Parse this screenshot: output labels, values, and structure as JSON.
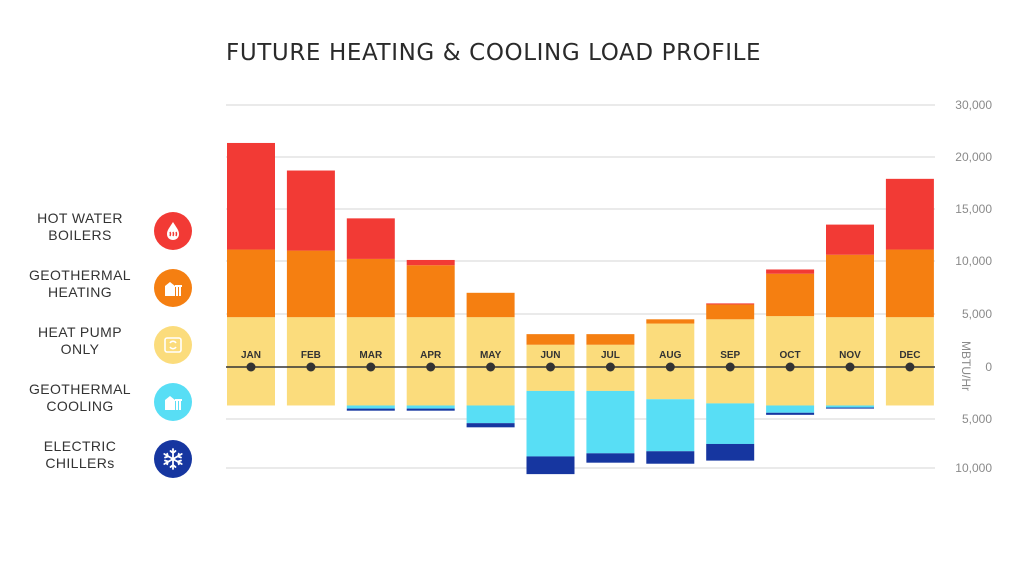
{
  "title": "FUTURE HEATING & COOLING LOAD PROFILE",
  "legend": [
    {
      "label_line1": "HOT WATER",
      "label_line2": "BOILERS",
      "color": "#f23a35",
      "icon": "flame-icon"
    },
    {
      "label_line1": "GEOTHERMAL",
      "label_line2": "HEATING",
      "color": "#f57f11",
      "icon": "geothermal-heating-icon"
    },
    {
      "label_line1": "HEAT PUMP",
      "label_line2": "ONLY",
      "color": "#fbdc7c",
      "icon": "heat-pump-icon"
    },
    {
      "label_line1": "GEOTHERMAL",
      "label_line2": "COOLING",
      "color": "#58def5",
      "icon": "geothermal-cooling-icon"
    },
    {
      "label_line1": "ELECTRIC",
      "label_line2": "CHILLERs",
      "color": "#1636a0",
      "icon": "snowflake-icon"
    }
  ],
  "chart_data": {
    "type": "bar",
    "stacked": true,
    "title": "FUTURE HEATING & COOLING LOAD PROFILE",
    "ylabel": "MBTU/Hr",
    "categories": [
      "JAN",
      "FEB",
      "MAR",
      "APR",
      "MAY",
      "JUN",
      "JUL",
      "AUG",
      "SEP",
      "OCT",
      "NOV",
      "DEC"
    ],
    "y_ticks_upper": [
      "30,000",
      "20,000",
      "15,000",
      "10,000",
      "5,000",
      "0"
    ],
    "y_ticks_lower": [
      "5,000",
      "10,000"
    ],
    "y_tick_values_upper": [
      30000,
      20000,
      15000,
      10000,
      5000,
      0
    ],
    "y_tick_values_lower": [
      -5000,
      -10000
    ],
    "heating_series": [
      {
        "name": "HEAT PUMP ONLY",
        "color": "#fbdc7c",
        "values": [
          4700,
          4700,
          4700,
          4700,
          4700,
          2100,
          2100,
          4100,
          4500,
          4800,
          4700,
          4700
        ]
      },
      {
        "name": "GEOTHERMAL HEATING",
        "color": "#f57f11",
        "values": [
          6400,
          6300,
          5500,
          4900,
          2300,
          1000,
          1000,
          400,
          1400,
          4000,
          5900,
          6400
        ]
      },
      {
        "name": "HOT WATER BOILERS",
        "color": "#f23a35",
        "values": [
          11600,
          7700,
          3900,
          500,
          0,
          0,
          0,
          0,
          100,
          400,
          2900,
          6800
        ]
      }
    ],
    "cooling_series": [
      {
        "name": "HEAT PUMP ONLY",
        "color": "#fbdc7c",
        "values": [
          3700,
          3700,
          3700,
          3700,
          3700,
          2300,
          2300,
          3100,
          3500,
          3700,
          3700,
          3700
        ]
      },
      {
        "name": "GEOTHERMAL COOLING",
        "color": "#58def5",
        "values": [
          0,
          0,
          300,
          300,
          1700,
          6300,
          6000,
          5000,
          3900,
          700,
          200,
          0
        ]
      },
      {
        "name": "ELECTRIC CHILLERS",
        "color": "#1636a0",
        "values": [
          0,
          0,
          200,
          200,
          400,
          1700,
          900,
          1200,
          1600,
          200,
          100,
          0
        ]
      }
    ]
  }
}
